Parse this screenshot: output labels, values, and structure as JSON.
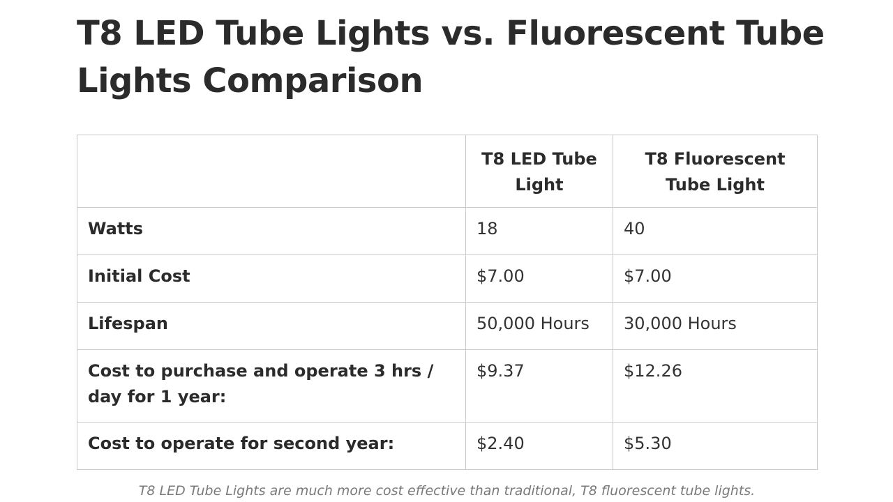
{
  "title": "T8 LED Tube Lights vs. Fluorescent Tube Lights Comparison",
  "table": {
    "headers": [
      "",
      "T8 LED Tube Light",
      "T8 Fluorescent Tube Light"
    ],
    "rows": [
      {
        "label": "Watts",
        "led": "18",
        "fluorescent": "40"
      },
      {
        "label": "Initial Cost",
        "led": "$7.00",
        "fluorescent": "$7.00"
      },
      {
        "label": "Lifespan",
        "led": "50,000 Hours",
        "fluorescent": "30,000 Hours"
      },
      {
        "label": "Cost to purchase and operate 3 hrs / day for 1 year:",
        "led": "$9.37",
        "fluorescent": "$12.26"
      },
      {
        "label": "Cost to operate for second year:",
        "led": "$2.40",
        "fluorescent": "$5.30"
      }
    ]
  },
  "caption": "T8 LED Tube Lights are much more cost effective than traditional, T8 fluorescent tube lights.",
  "colors": {
    "text": "#2b2b2b",
    "border": "#c9c9c9",
    "caption": "#7a7a7a",
    "background": "#ffffff"
  }
}
